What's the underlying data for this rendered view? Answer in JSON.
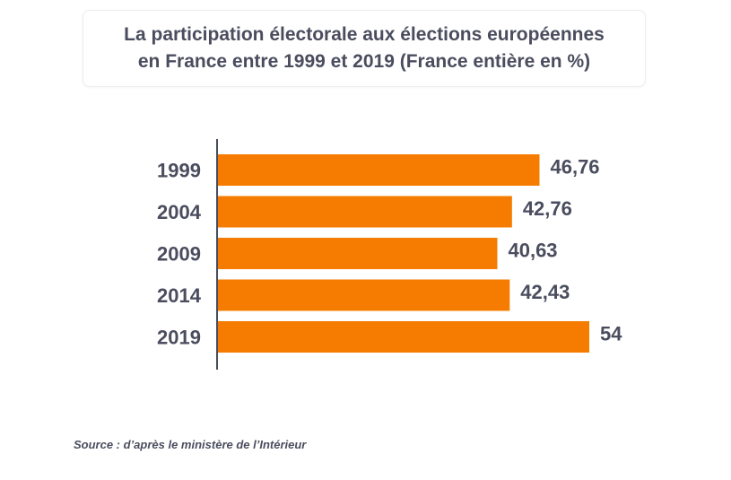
{
  "chart_data": {
    "type": "bar",
    "orientation": "horizontal",
    "title_lines": [
      "La participation électorale aux élections européennes",
      "en France entre 1999 et 2019 (France entière en %)"
    ],
    "categories": [
      "1999",
      "2004",
      "2009",
      "2014",
      "2019"
    ],
    "values": [
      46.76,
      42.76,
      40.63,
      42.43,
      54
    ],
    "value_labels": [
      "46,76",
      "42,76",
      "40,63",
      "42,43",
      "54"
    ],
    "xlim": [
      0,
      60
    ],
    "bar_color": "#f57c00",
    "axis_color": "#4a4d5e",
    "text_color": "#4a4d5e"
  },
  "source": "Source : d’après le ministère de l’Intérieur"
}
